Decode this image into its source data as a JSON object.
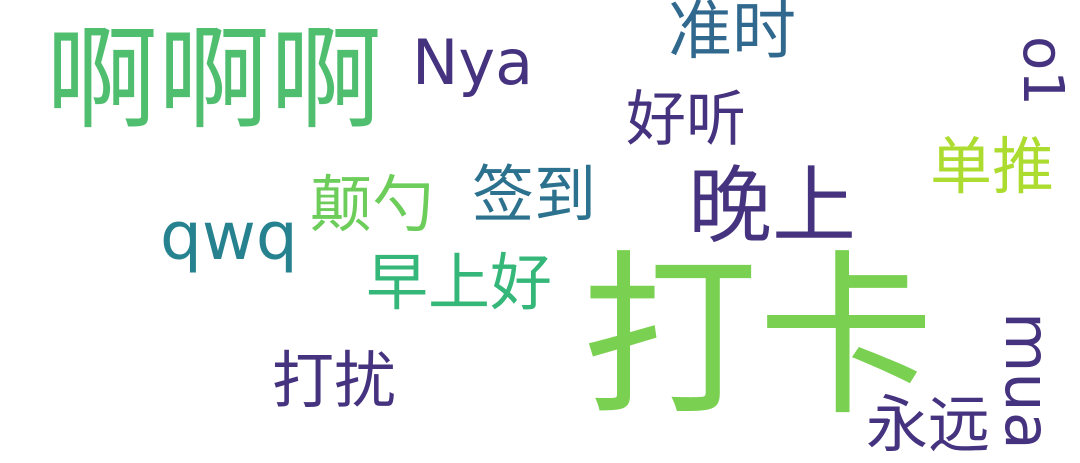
{
  "word_cloud": {
    "words": [
      {
        "id": "w1",
        "text": "啊啊啊",
        "color": "#4fbf6f"
      },
      {
        "id": "w2",
        "text": "Nya",
        "color": "#46337f"
      },
      {
        "id": "w3",
        "text": "准时",
        "color": "#31688e"
      },
      {
        "id": "w4",
        "text": "o1",
        "color": "#46337f"
      },
      {
        "id": "w5",
        "text": "好听",
        "color": "#46337f"
      },
      {
        "id": "w6",
        "text": "单推",
        "color": "#addc30"
      },
      {
        "id": "w7",
        "text": "晚上",
        "color": "#46337f"
      },
      {
        "id": "w8",
        "text": "颠勺",
        "color": "#6ccd5a"
      },
      {
        "id": "w9",
        "text": "签到",
        "color": "#2c728e"
      },
      {
        "id": "w10",
        "text": "qwq",
        "color": "#26828e"
      },
      {
        "id": "w11",
        "text": "早上好",
        "color": "#35b779"
      },
      {
        "id": "w12",
        "text": "打卡",
        "color": "#7ad151"
      },
      {
        "id": "w13",
        "text": "打扰",
        "color": "#46337f"
      },
      {
        "id": "w14",
        "text": "mua",
        "color": "#46337f"
      },
      {
        "id": "w15",
        "text": "永远",
        "color": "#46337f"
      }
    ]
  }
}
